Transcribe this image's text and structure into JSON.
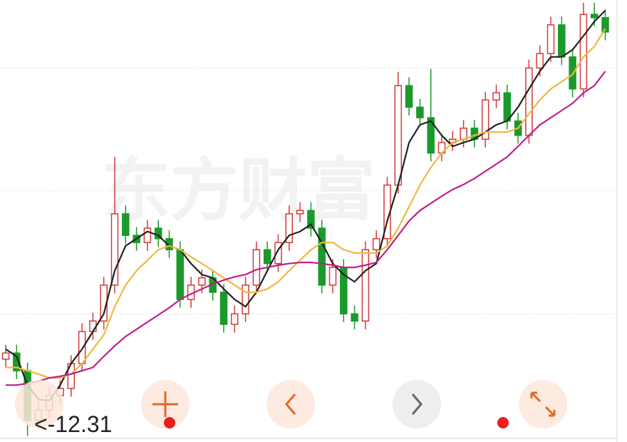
{
  "watermark": "东方财富",
  "chart_data": {
    "type": "candlestick",
    "open": [
      13.7,
      13.81,
      13.49,
      12.59,
      12.78,
      13.04,
      13.17,
      13.62,
      14.2,
      14.39,
      15.04,
      16.33,
      15.94,
      15.81,
      16.07,
      15.88,
      15.68,
      14.78,
      15.04,
      15.17,
      14.91,
      14.33,
      14.52,
      15.04,
      15.68,
      15.43,
      15.81,
      16.33,
      16.39,
      16.07,
      15.04,
      15.36,
      14.52,
      14.39,
      15.68,
      15.88,
      16.85,
      18.65,
      18.26,
      18.07,
      17.43,
      17.62,
      17.68,
      17.88,
      17.68,
      18.39,
      18.52,
      18.01,
      17.75,
      18.97,
      19.23,
      19.75,
      19.17,
      18.59,
      19.94,
      19.88
    ],
    "close": [
      13.81,
      13.49,
      12.59,
      12.78,
      13.04,
      13.17,
      13.62,
      14.2,
      14.39,
      15.04,
      16.33,
      15.94,
      15.81,
      16.07,
      15.88,
      15.68,
      14.78,
      15.04,
      15.17,
      14.91,
      14.33,
      14.52,
      15.04,
      15.68,
      15.43,
      15.81,
      16.33,
      16.39,
      16.07,
      15.04,
      15.36,
      14.52,
      14.39,
      15.68,
      15.88,
      16.85,
      18.65,
      18.26,
      18.07,
      17.43,
      17.62,
      17.68,
      17.88,
      17.68,
      18.39,
      18.52,
      18.01,
      17.75,
      18.97,
      19.23,
      19.75,
      19.17,
      18.59,
      19.94,
      19.88,
      19.62
    ],
    "high": [
      13.96,
      13.96,
      13.64,
      12.93,
      13.19,
      13.32,
      13.77,
      14.35,
      14.54,
      15.19,
      17.36,
      16.48,
      16.09,
      16.22,
      16.22,
      16.03,
      15.83,
      15.19,
      15.32,
      15.32,
      15.06,
      14.67,
      15.19,
      15.83,
      15.83,
      15.96,
      16.48,
      16.54,
      16.54,
      16.22,
      15.51,
      15.51,
      14.67,
      15.83,
      16.03,
      17.0,
      18.9,
      18.8,
      18.41,
      18.95,
      17.77,
      17.83,
      18.03,
      18.03,
      18.54,
      18.67,
      18.67,
      18.16,
      19.12,
      19.38,
      19.9,
      19.9,
      19.32,
      20.15,
      20.15,
      20.03
    ],
    "low": [
      13.55,
      13.34,
      12.31,
      12.44,
      12.63,
      12.89,
      13.02,
      13.47,
      14.05,
      14.24,
      14.89,
      15.79,
      15.66,
      15.66,
      15.73,
      15.53,
      14.63,
      14.63,
      14.89,
      14.76,
      14.18,
      14.18,
      14.37,
      14.89,
      15.28,
      15.28,
      15.66,
      16.18,
      15.92,
      14.89,
      14.89,
      14.37,
      14.24,
      14.24,
      15.53,
      15.73,
      16.7,
      18.11,
      17.92,
      17.28,
      17.28,
      17.47,
      17.53,
      17.53,
      17.53,
      18.24,
      17.86,
      17.6,
      17.6,
      18.82,
      19.08,
      19.02,
      18.44,
      18.44,
      19.73,
      19.47
    ],
    "up_color": "#d23a3a",
    "down_color": "#1a9a2a",
    "moving_averages": [
      {
        "color": "#222222",
        "values": [
          13.88,
          13.75,
          13.23,
          12.97,
          12.95,
          13.23,
          13.62,
          13.88,
          14.2,
          14.52,
          15.3,
          15.75,
          15.88,
          16.01,
          15.94,
          15.75,
          15.68,
          15.43,
          15.23,
          15.17,
          14.97,
          14.78,
          14.65,
          14.91,
          15.3,
          15.68,
          15.94,
          16.01,
          16.14,
          15.81,
          15.43,
          15.23,
          15.1,
          15.3,
          15.43,
          16.2,
          16.85,
          17.62,
          17.94,
          18.01,
          17.75,
          17.55,
          17.62,
          17.68,
          17.81,
          17.94,
          18.01,
          18.26,
          18.59,
          18.91,
          19.17,
          19.17,
          19.3,
          19.55,
          19.81,
          20.01
        ]
      },
      {
        "color": "#f0b840",
        "values": [
          13.55,
          13.55,
          13.49,
          13.43,
          13.36,
          13.36,
          13.43,
          13.62,
          13.88,
          14.14,
          14.65,
          15.04,
          15.3,
          15.49,
          15.68,
          15.75,
          15.68,
          15.55,
          15.43,
          15.3,
          15.17,
          15.04,
          14.91,
          14.91,
          14.97,
          15.1,
          15.3,
          15.49,
          15.68,
          15.81,
          15.81,
          15.68,
          15.62,
          15.62,
          15.62,
          15.75,
          16.07,
          16.46,
          16.85,
          17.17,
          17.43,
          17.62,
          17.68,
          17.75,
          17.81,
          17.81,
          17.81,
          17.88,
          18.14,
          18.39,
          18.59,
          18.72,
          18.85,
          19.17,
          19.36,
          19.68
        ]
      },
      {
        "color": "#c0208a",
        "values": [
          13.23,
          13.23,
          13.26,
          13.3,
          13.36,
          13.39,
          13.43,
          13.49,
          13.55,
          13.75,
          13.94,
          14.11,
          14.24,
          14.37,
          14.5,
          14.63,
          14.78,
          14.88,
          14.97,
          15.06,
          15.13,
          15.19,
          15.23,
          15.32,
          15.36,
          15.4,
          15.43,
          15.45,
          15.45,
          15.43,
          15.4,
          15.36,
          15.36,
          15.4,
          15.45,
          15.68,
          15.94,
          16.2,
          16.39,
          16.52,
          16.65,
          16.77,
          16.86,
          16.97,
          17.1,
          17.23,
          17.36,
          17.55,
          17.75,
          17.94,
          18.07,
          18.2,
          18.33,
          18.52,
          18.65,
          18.91
        ]
      }
    ],
    "ylim": [
      12.2,
      20.2
    ],
    "grid_lines": [
      18.97,
      16.75,
      14.52
    ],
    "annotation": "<-12.31"
  }
}
